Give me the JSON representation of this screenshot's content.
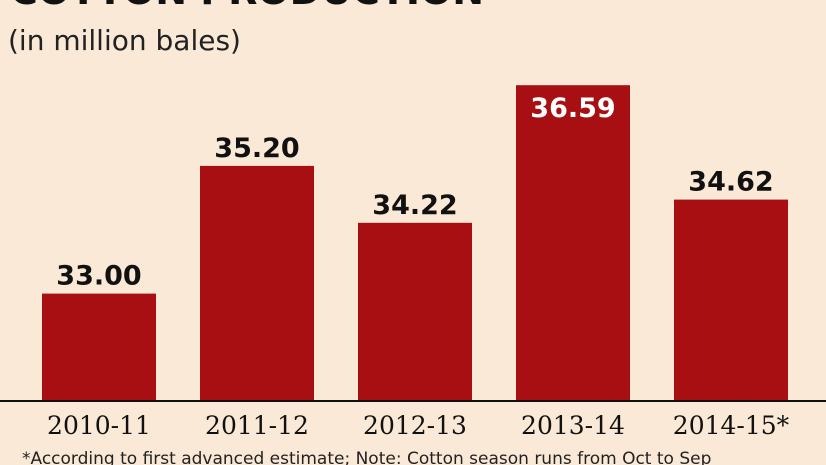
{
  "chart_data": {
    "type": "bar",
    "title": "COTTON PRODUCTION",
    "subtitle": "(in million bales)",
    "categories": [
      "2010-11",
      "2011-12",
      "2012-13",
      "2013-14",
      "2014-15*"
    ],
    "values": [
      33.0,
      35.2,
      34.22,
      36.59,
      34.62
    ],
    "value_labels": [
      "33.00",
      "35.20",
      "34.22",
      "36.59",
      "34.62"
    ],
    "ylim": [
      31.15,
      36.8
    ],
    "grid": false,
    "legend": "none",
    "footnote": "*According to first advanced estimate; Note: Cotton season runs from Oct to Sep",
    "colors": {
      "background": "#fbe9d7",
      "bar": "#a80f12",
      "axis": "#111111"
    }
  }
}
